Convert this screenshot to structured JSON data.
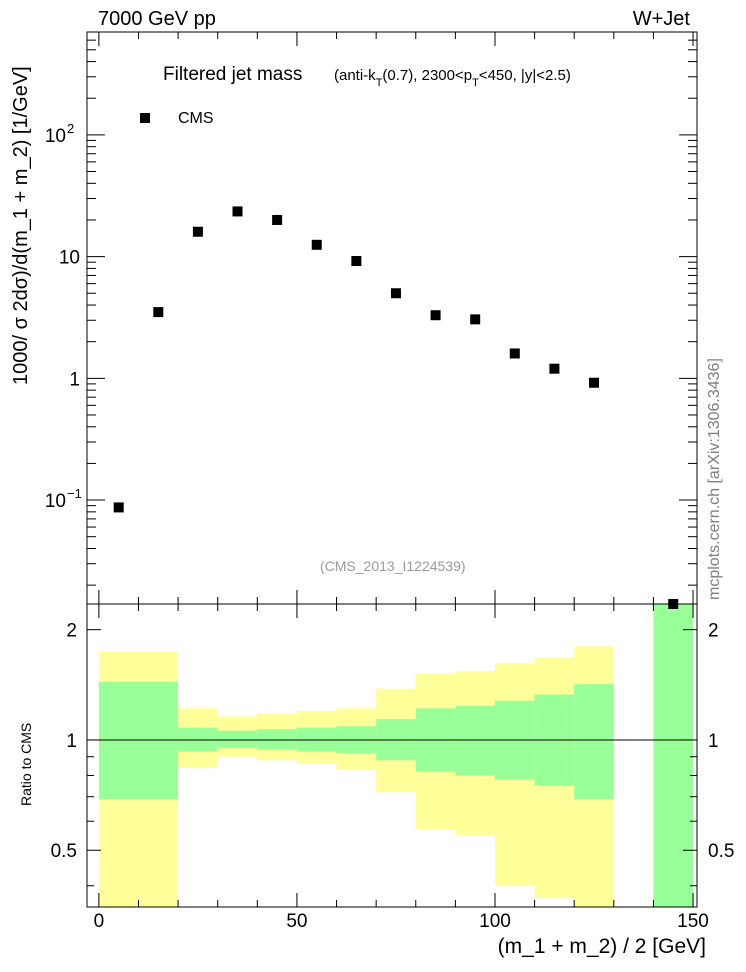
{
  "header": {
    "left": "7000 GeV pp",
    "right": "W+Jet",
    "side_label": "mcplots.cern.ch [arXiv:1306.3436]"
  },
  "plot": {
    "title_main": "Filtered jet mass",
    "title_sub_1": "(anti-k",
    "title_sub_T1": "T",
    "title_sub_2": "(0.7), 2300<p",
    "title_sub_T2": "T",
    "title_sub_3": "<450, |y|<2.5)",
    "watermark": "(CMS_2013_I1224539)",
    "legend_label": "CMS"
  },
  "axes": {
    "ylabel_main": "1000/ σ 2dσ)/d(m_1 + m_2) [1/GeV]",
    "ylabel_ratio": "Ratio to CMS",
    "xlabel": "(m_1 + m_2) / 2 [GeV]",
    "main_yticks": [
      {
        "value": 0.1,
        "label": "10",
        "sup": "−1"
      },
      {
        "value": 1,
        "label": "1",
        "sup": ""
      },
      {
        "value": 10,
        "label": "10",
        "sup": ""
      },
      {
        "value": 100,
        "label": "10",
        "sup": "2"
      }
    ],
    "ratio_yticks": [
      "0.5",
      "1",
      "2"
    ],
    "xticks": [
      "0",
      "50",
      "100",
      "150"
    ]
  },
  "chart_data": {
    "type": "scatter",
    "title": "Filtered jet mass (anti-kT(0.7), 2300<pT<450, |y|<2.5)",
    "xlabel": "(m_1 + m_2) / 2 [GeV]",
    "ylabel": "1000/ σ 2dσ)/d(m_1 + m_2) [1/GeV]",
    "xlim": [
      -3,
      151
    ],
    "ylim": [
      0.014,
      700
    ],
    "yscale": "log",
    "series": [
      {
        "name": "CMS",
        "points": [
          {
            "x": 5,
            "y": 0.087
          },
          {
            "x": 15,
            "y": 3.5
          },
          {
            "x": 25,
            "y": 16
          },
          {
            "x": 35,
            "y": 23.5
          },
          {
            "x": 45,
            "y": 20
          },
          {
            "x": 55,
            "y": 12.5
          },
          {
            "x": 65,
            "y": 9.2
          },
          {
            "x": 75,
            "y": 5.0
          },
          {
            "x": 85,
            "y": 3.3
          },
          {
            "x": 95,
            "y": 3.05
          },
          {
            "x": 105,
            "y": 1.6
          },
          {
            "x": 115,
            "y": 1.2
          },
          {
            "x": 125,
            "y": 0.92
          }
        ]
      }
    ],
    "ratio": {
      "ylabel": "Ratio to CMS",
      "ylim": [
        0.35,
        2.35
      ],
      "yscale": "log",
      "reference_line": 1,
      "bins": [
        {
          "x0": 0,
          "x1": 20,
          "inner": [
            0.69,
            1.44
          ],
          "outer": [
            0.35,
            1.74
          ]
        },
        {
          "x0": 20,
          "x1": 30,
          "inner": [
            0.93,
            1.08
          ],
          "outer": [
            0.84,
            1.22
          ]
        },
        {
          "x0": 30,
          "x1": 40,
          "inner": [
            0.95,
            1.06
          ],
          "outer": [
            0.9,
            1.16
          ]
        },
        {
          "x0": 40,
          "x1": 50,
          "inner": [
            0.94,
            1.07
          ],
          "outer": [
            0.88,
            1.18
          ]
        },
        {
          "x0": 50,
          "x1": 60,
          "inner": [
            0.93,
            1.08
          ],
          "outer": [
            0.86,
            1.2
          ]
        },
        {
          "x0": 60,
          "x1": 70,
          "inner": [
            0.92,
            1.09
          ],
          "outer": [
            0.83,
            1.22
          ]
        },
        {
          "x0": 70,
          "x1": 80,
          "inner": [
            0.88,
            1.14
          ],
          "outer": [
            0.72,
            1.38
          ]
        },
        {
          "x0": 80,
          "x1": 90,
          "inner": [
            0.82,
            1.22
          ],
          "outer": [
            0.57,
            1.52
          ]
        },
        {
          "x0": 90,
          "x1": 100,
          "inner": [
            0.8,
            1.24
          ],
          "outer": [
            0.55,
            1.54
          ]
        },
        {
          "x0": 100,
          "x1": 110,
          "inner": [
            0.78,
            1.28
          ],
          "outer": [
            0.4,
            1.62
          ]
        },
        {
          "x0": 110,
          "x1": 120,
          "inner": [
            0.75,
            1.33
          ],
          "outer": [
            0.37,
            1.68
          ]
        },
        {
          "x0": 120,
          "x1": 130,
          "inner": [
            0.69,
            1.42
          ],
          "outer": [
            0.35,
            1.8
          ]
        },
        {
          "x0": 140,
          "x1": 150,
          "inner": [
            0.35,
            2.35
          ],
          "outer": [
            0.35,
            2.35
          ]
        }
      ],
      "colors": {
        "inner": "#99ff99",
        "outer": "#ffff99"
      }
    }
  }
}
